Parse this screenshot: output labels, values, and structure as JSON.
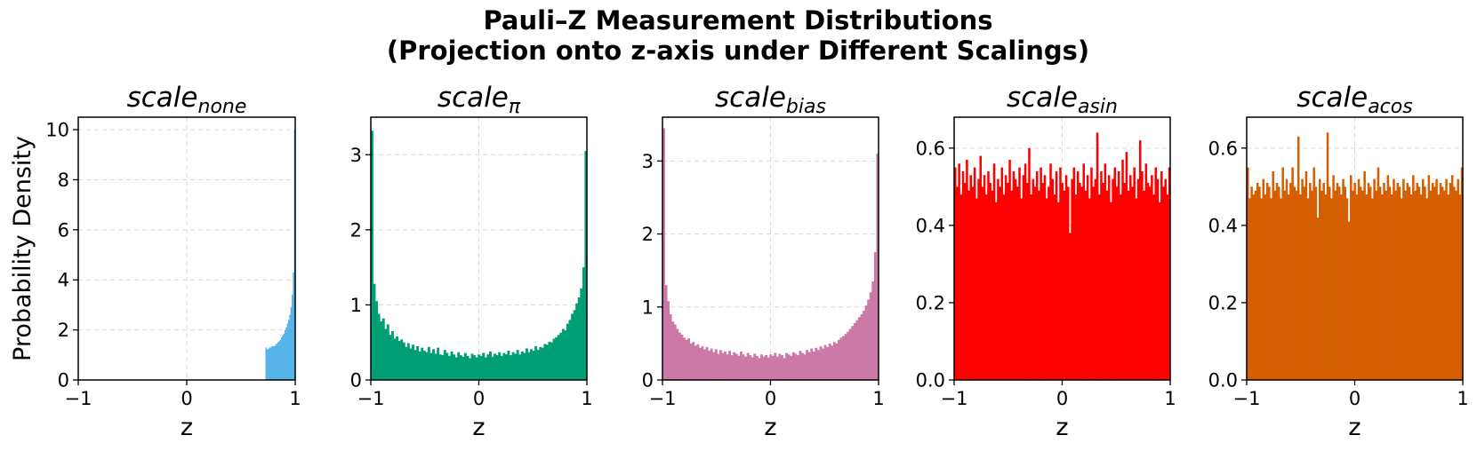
{
  "figure": {
    "title_line1": "Pauli–Z Measurement Distributions",
    "title_line2": "(Projection onto z-axis under Different Scalings)"
  },
  "chart_data": [
    {
      "type": "bar",
      "title_base": "scale",
      "title_sub": "none",
      "xlabel": "z",
      "ylabel": "Probability Density",
      "xlim": [
        -1,
        1
      ],
      "ylim": [
        0,
        10.5
      ],
      "yticks": [
        "0",
        "2",
        "4",
        "6",
        "8",
        "10"
      ],
      "ytick_values": [
        0,
        2,
        4,
        6,
        8,
        10
      ],
      "xticks": [
        "−1",
        "0",
        "1"
      ],
      "xtick_values": [
        -1,
        0,
        1
      ],
      "grid": true,
      "color": "#56B4E9",
      "bin_range": [
        -1,
        1
      ],
      "values": [
        0,
        0,
        0,
        0,
        0,
        0,
        0,
        0,
        0,
        0,
        0,
        0,
        0,
        0,
        0,
        0,
        0,
        0,
        0,
        0,
        0,
        0,
        0,
        0,
        0,
        0,
        0,
        0,
        0,
        0,
        0,
        0,
        0,
        0,
        0,
        0,
        0,
        0,
        0,
        0,
        0,
        0,
        0,
        0,
        0,
        0,
        0,
        0,
        0,
        0,
        0,
        0,
        0,
        0,
        0,
        0,
        0,
        0,
        0,
        0,
        0,
        0,
        0,
        0,
        0,
        0,
        0,
        0,
        0,
        0,
        0,
        0,
        0,
        0,
        0,
        0,
        0,
        0,
        0,
        0,
        0,
        0,
        0,
        0,
        0,
        0,
        0,
        0,
        0,
        0,
        0,
        0,
        0,
        0,
        0,
        0,
        0,
        0,
        0,
        0,
        0,
        0,
        0,
        0,
        0,
        0,
        0,
        0,
        0,
        0,
        0,
        0,
        0,
        0,
        0,
        0,
        0,
        0,
        0,
        0,
        0,
        0,
        0,
        0,
        0,
        0,
        0,
        0,
        0,
        0,
        0,
        0,
        0,
        0,
        0,
        0,
        0,
        0,
        0,
        0,
        0,
        0,
        0,
        0,
        0,
        0,
        0,
        0,
        0,
        0,
        0,
        0,
        0,
        0,
        0,
        0,
        0,
        1.3,
        1.2,
        1.25,
        1.3,
        1.3,
        1.35,
        1.35,
        1.35,
        1.4,
        1.45,
        1.5,
        1.55,
        1.6,
        1.7,
        1.8,
        1.85,
        2.0,
        2.1,
        2.25,
        2.4,
        2.6,
        2.9,
        3.4,
        4.3,
        10.0
      ]
    },
    {
      "type": "bar",
      "title_base": "scale",
      "title_sub": "π",
      "xlabel": "z",
      "ylabel": "",
      "xlim": [
        -1,
        1
      ],
      "ylim": [
        0,
        3.5
      ],
      "yticks": [
        "0",
        "1",
        "2",
        "3"
      ],
      "ytick_values": [
        0,
        1,
        2,
        3
      ],
      "xticks": [
        "−1",
        "0",
        "1"
      ],
      "xtick_values": [
        -1,
        0,
        1
      ],
      "grid": true,
      "color": "#009E73",
      "bin_range": [
        -1,
        1
      ],
      "values": [
        3.32,
        1.28,
        1.05,
        0.88,
        0.78,
        0.82,
        0.68,
        0.74,
        0.6,
        0.65,
        0.55,
        0.58,
        0.52,
        0.54,
        0.5,
        0.44,
        0.49,
        0.42,
        0.47,
        0.4,
        0.45,
        0.38,
        0.43,
        0.39,
        0.37,
        0.44,
        0.36,
        0.41,
        0.35,
        0.43,
        0.34,
        0.33,
        0.4,
        0.36,
        0.32,
        0.38,
        0.34,
        0.3,
        0.37,
        0.33,
        0.31,
        0.36,
        0.32,
        0.29,
        0.35,
        0.33,
        0.3,
        0.34,
        0.32,
        0.36,
        0.3,
        0.34,
        0.38,
        0.31,
        0.35,
        0.33,
        0.37,
        0.32,
        0.36,
        0.34,
        0.39,
        0.33,
        0.37,
        0.35,
        0.4,
        0.34,
        0.38,
        0.36,
        0.42,
        0.37,
        0.41,
        0.39,
        0.45,
        0.4,
        0.44,
        0.43,
        0.48,
        0.47,
        0.51,
        0.5,
        0.55,
        0.57,
        0.6,
        0.63,
        0.68,
        0.66,
        0.75,
        0.8,
        0.88,
        0.93,
        1.02,
        1.1,
        1.22,
        1.5,
        3.05
      ]
    },
    {
      "type": "bar",
      "title_base": "scale",
      "title_sub": "bias",
      "xlabel": "z",
      "ylabel": "",
      "xlim": [
        -1,
        1
      ],
      "ylim": [
        0,
        3.6
      ],
      "yticks": [
        "0",
        "1",
        "2",
        "3"
      ],
      "ytick_values": [
        0,
        1,
        2,
        3
      ],
      "xticks": [
        "−1",
        "0",
        "1"
      ],
      "xtick_values": [
        -1,
        0,
        1
      ],
      "grid": true,
      "color": "#CC79A7",
      "bin_range": [
        -1,
        1
      ],
      "values": [
        3.45,
        1.3,
        1.08,
        0.9,
        0.8,
        0.76,
        0.7,
        0.65,
        0.62,
        0.58,
        0.55,
        0.57,
        0.5,
        0.52,
        0.47,
        0.49,
        0.44,
        0.46,
        0.42,
        0.45,
        0.4,
        0.43,
        0.38,
        0.42,
        0.36,
        0.41,
        0.37,
        0.39,
        0.35,
        0.4,
        0.34,
        0.38,
        0.36,
        0.33,
        0.39,
        0.35,
        0.32,
        0.37,
        0.34,
        0.31,
        0.36,
        0.33,
        0.3,
        0.35,
        0.32,
        0.34,
        0.31,
        0.35,
        0.33,
        0.37,
        0.32,
        0.36,
        0.34,
        0.3,
        0.37,
        0.35,
        0.33,
        0.38,
        0.36,
        0.34,
        0.4,
        0.37,
        0.35,
        0.41,
        0.38,
        0.43,
        0.39,
        0.44,
        0.41,
        0.46,
        0.43,
        0.48,
        0.45,
        0.5,
        0.47,
        0.52,
        0.5,
        0.55,
        0.58,
        0.6,
        0.63,
        0.66,
        0.7,
        0.74,
        0.78,
        0.82,
        0.86,
        0.9,
        0.95,
        1.02,
        1.1,
        1.2,
        1.35,
        1.75,
        3.1
      ]
    },
    {
      "type": "bar",
      "title_base": "scale",
      "title_sub": "asin",
      "xlabel": "z",
      "ylabel": "",
      "xlim": [
        -1,
        1
      ],
      "ylim": [
        0,
        0.68
      ],
      "yticks": [
        "0.0",
        "0.2",
        "0.4",
        "0.6"
      ],
      "ytick_values": [
        0,
        0.2,
        0.4,
        0.6
      ],
      "xticks": [
        "−1",
        "0",
        "1"
      ],
      "xtick_values": [
        -1,
        0,
        1
      ],
      "grid": true,
      "color": "#FF0000",
      "bin_range": [
        -1,
        1
      ],
      "values": [
        0.55,
        0.5,
        0.56,
        0.48,
        0.54,
        0.51,
        0.57,
        0.49,
        0.53,
        0.5,
        0.55,
        0.47,
        0.52,
        0.58,
        0.5,
        0.53,
        0.48,
        0.54,
        0.51,
        0.49,
        0.56,
        0.46,
        0.52,
        0.5,
        0.55,
        0.48,
        0.53,
        0.51,
        0.57,
        0.49,
        0.54,
        0.52,
        0.5,
        0.55,
        0.47,
        0.53,
        0.56,
        0.51,
        0.6,
        0.48,
        0.52,
        0.5,
        0.54,
        0.49,
        0.55,
        0.51,
        0.53,
        0.47,
        0.5,
        0.56,
        0.52,
        0.48,
        0.54,
        0.46,
        0.55,
        0.51,
        0.49,
        0.53,
        0.5,
        0.38,
        0.52,
        0.55,
        0.48,
        0.54,
        0.51,
        0.5,
        0.56,
        0.49,
        0.53,
        0.47,
        0.55,
        0.5,
        0.52,
        0.64,
        0.48,
        0.54,
        0.51,
        0.56,
        0.49,
        0.53,
        0.46,
        0.52,
        0.55,
        0.5,
        0.54,
        0.48,
        0.57,
        0.51,
        0.59,
        0.49,
        0.53,
        0.5,
        0.55,
        0.47,
        0.52,
        0.62,
        0.54,
        0.49,
        0.56,
        0.51,
        0.5,
        0.53,
        0.48,
        0.55,
        0.52,
        0.46,
        0.54,
        0.5,
        0.52,
        0.48,
        0.55
      ]
    },
    {
      "type": "bar",
      "title_base": "scale",
      "title_sub": "acos",
      "xlabel": "z",
      "ylabel": "",
      "xlim": [
        -1,
        1
      ],
      "ylim": [
        0,
        0.68
      ],
      "yticks": [
        "0.0",
        "0.2",
        "0.4",
        "0.6"
      ],
      "ytick_values": [
        0,
        0.2,
        0.4,
        0.6
      ],
      "xticks": [
        "−1",
        "0",
        "1"
      ],
      "xtick_values": [
        -1,
        0,
        1
      ],
      "grid": true,
      "color": "#D55E00",
      "bin_range": [
        -1,
        1
      ],
      "values": [
        0.55,
        0.47,
        0.5,
        0.48,
        0.49,
        0.51,
        0.5,
        0.47,
        0.52,
        0.48,
        0.51,
        0.5,
        0.47,
        0.54,
        0.49,
        0.51,
        0.5,
        0.47,
        0.55,
        0.49,
        0.52,
        0.48,
        0.51,
        0.55,
        0.5,
        0.49,
        0.63,
        0.48,
        0.52,
        0.5,
        0.54,
        0.47,
        0.51,
        0.49,
        0.55,
        0.5,
        0.42,
        0.52,
        0.49,
        0.51,
        0.48,
        0.64,
        0.5,
        0.47,
        0.53,
        0.49,
        0.51,
        0.5,
        0.48,
        0.52,
        0.5,
        0.47,
        0.41,
        0.53,
        0.49,
        0.51,
        0.48,
        0.52,
        0.5,
        0.49,
        0.54,
        0.48,
        0.51,
        0.5,
        0.47,
        0.52,
        0.49,
        0.55,
        0.5,
        0.48,
        0.51,
        0.49,
        0.53,
        0.5,
        0.48,
        0.52,
        0.49,
        0.51,
        0.5,
        0.47,
        0.52,
        0.49,
        0.51,
        0.5,
        0.48,
        0.53,
        0.49,
        0.51,
        0.5,
        0.48,
        0.52,
        0.5,
        0.47,
        0.53,
        0.49,
        0.51,
        0.5,
        0.52,
        0.48,
        0.51,
        0.5,
        0.49,
        0.52,
        0.48,
        0.51,
        0.53,
        0.5,
        0.49,
        0.52,
        0.48,
        0.55
      ]
    }
  ]
}
